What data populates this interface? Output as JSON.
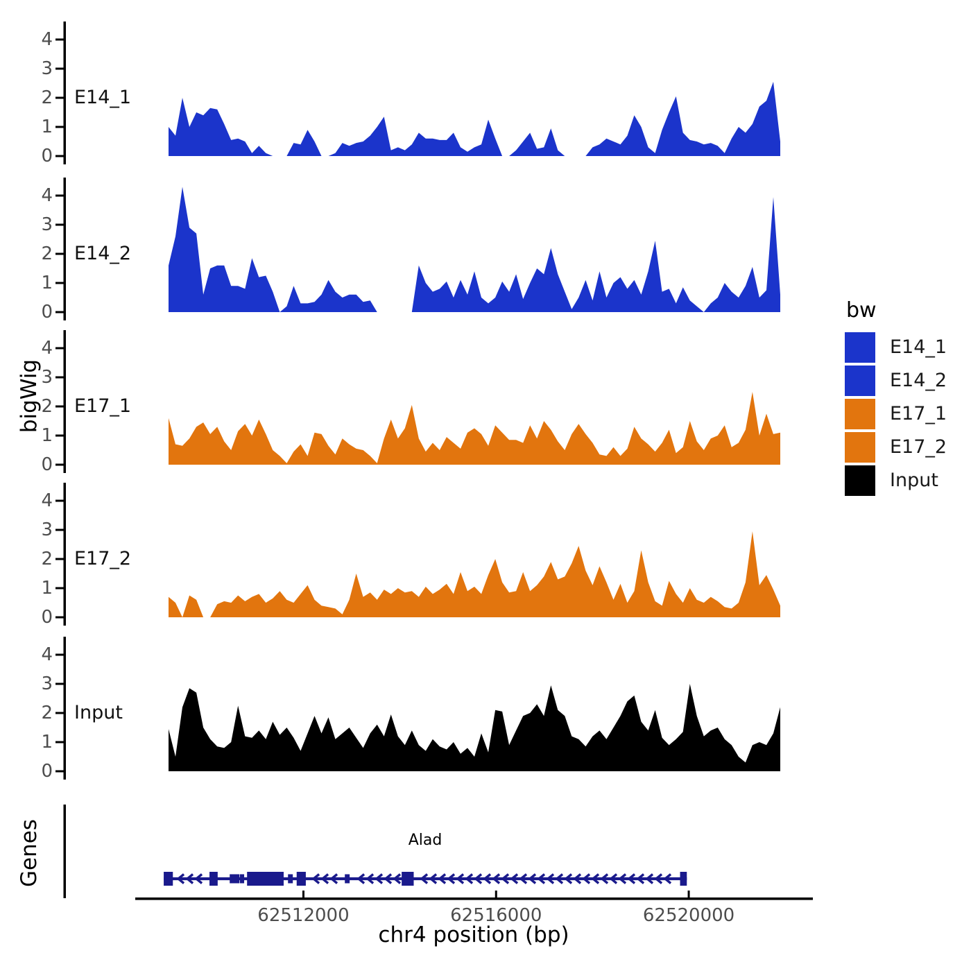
{
  "figure": {
    "background": "#ffffff",
    "y_axis_label": "bigWig",
    "genes_axis_label": "Genes",
    "x_axis": {
      "label": "chr4 position (bp)"
    }
  },
  "legend": {
    "title": "bw",
    "entries": [
      {
        "label": "E14_1",
        "color": "#1b34cb"
      },
      {
        "label": "E14_2",
        "color": "#1b34cb"
      },
      {
        "label": "E17_1",
        "color": "#e2750e"
      },
      {
        "label": "E17_2",
        "color": "#e2750e"
      },
      {
        "label": "Input",
        "color": "#000000"
      }
    ]
  },
  "chart_data": {
    "type": "area",
    "title": "",
    "xlabel": "chr4 position (bp)",
    "ylabel": "bigWig",
    "x_range_bp": [
      62509200,
      62521900
    ],
    "x_ticks": [
      {
        "bp": 62512000,
        "label": "62512000"
      },
      {
        "bp": 62516000,
        "label": "62516000"
      },
      {
        "bp": 62520000,
        "label": "62520000"
      }
    ],
    "yticks": [
      0,
      1,
      2,
      3,
      4
    ],
    "ylim": [
      0,
      4.6
    ],
    "grid": false,
    "legend_position": "right",
    "sample_step_bp": 144,
    "series": [
      {
        "name": "E14_1",
        "color": "#1b34cb",
        "values": [
          1.0,
          0.7,
          2.0,
          1.0,
          1.5,
          1.4,
          1.65,
          1.6,
          1.1,
          0.55,
          0.6,
          0.5,
          0.1,
          0.35,
          0.1,
          0,
          0,
          0,
          0.45,
          0.4,
          0.9,
          0.5,
          0,
          0,
          0.1,
          0.45,
          0.35,
          0.45,
          0.5,
          0.7,
          1.0,
          1.35,
          0.2,
          0.3,
          0.2,
          0.4,
          0.8,
          0.6,
          0.6,
          0.55,
          0.55,
          0.8,
          0.3,
          0.15,
          0.3,
          0.4,
          1.25,
          0.6,
          0,
          0,
          0.2,
          0.5,
          0.8,
          0.25,
          0.3,
          0.95,
          0.2,
          0,
          0,
          0,
          0,
          0.3,
          0.4,
          0.6,
          0.5,
          0.4,
          0.7,
          1.4,
          1.0,
          0.3,
          0.1,
          0.9,
          1.5,
          2.05,
          0.8,
          0.55,
          0.5,
          0.4,
          0.45,
          0.35,
          0.1,
          0.6,
          1.0,
          0.8,
          1.1,
          1.7,
          1.9,
          2.55,
          0.5
        ]
      },
      {
        "name": "E14_2",
        "color": "#1b34cb",
        "values": [
          1.6,
          2.6,
          4.3,
          2.9,
          2.7,
          0.6,
          1.5,
          1.6,
          1.6,
          0.9,
          0.9,
          0.8,
          1.85,
          1.2,
          1.25,
          0.7,
          0,
          0.2,
          0.9,
          0.3,
          0.3,
          0.35,
          0.6,
          1.1,
          0.7,
          0.5,
          0.6,
          0.6,
          0.35,
          0.4,
          0,
          0,
          0,
          0,
          0,
          0,
          1.6,
          1.0,
          0.7,
          0.8,
          1.05,
          0.5,
          1.1,
          0.6,
          1.4,
          0.5,
          0.3,
          0.5,
          1.05,
          0.7,
          1.3,
          0.45,
          1.0,
          1.5,
          1.3,
          2.2,
          1.3,
          0.7,
          0.1,
          0.5,
          1.1,
          0.4,
          1.4,
          0.5,
          1.0,
          1.2,
          0.8,
          1.1,
          0.6,
          1.4,
          2.45,
          0.7,
          0.8,
          0.3,
          0.85,
          0.4,
          0.2,
          0,
          0.3,
          0.5,
          1.0,
          0.7,
          0.5,
          0.9,
          1.55,
          0.5,
          0.75,
          3.95,
          0.6
        ]
      },
      {
        "name": "E17_1",
        "color": "#e2750e",
        "values": [
          1.6,
          0.7,
          0.65,
          0.9,
          1.3,
          1.45,
          1.05,
          1.3,
          0.8,
          0.5,
          1.15,
          1.4,
          1.0,
          1.55,
          1.05,
          0.5,
          0.3,
          0.05,
          0.45,
          0.7,
          0.3,
          1.1,
          1.05,
          0.65,
          0.35,
          0.9,
          0.7,
          0.55,
          0.5,
          0.3,
          0.05,
          0.9,
          1.55,
          0.9,
          1.25,
          2.05,
          0.9,
          0.45,
          0.75,
          0.5,
          0.95,
          0.75,
          0.55,
          1.1,
          1.25,
          1.05,
          0.65,
          1.35,
          1.1,
          0.85,
          0.85,
          0.75,
          1.35,
          0.9,
          1.5,
          1.2,
          0.8,
          0.5,
          1.05,
          1.4,
          1.05,
          0.75,
          0.35,
          0.3,
          0.6,
          0.3,
          0.55,
          1.3,
          0.9,
          0.7,
          0.45,
          0.75,
          1.2,
          0.4,
          0.6,
          1.5,
          0.8,
          0.5,
          0.9,
          1.0,
          1.35,
          0.6,
          0.75,
          1.2,
          2.5,
          1.0,
          1.75,
          1.05,
          1.1
        ]
      },
      {
        "name": "E17_2",
        "color": "#e2750e",
        "values": [
          0.7,
          0.5,
          0,
          0.75,
          0.6,
          0,
          0,
          0.45,
          0.55,
          0.5,
          0.75,
          0.55,
          0.7,
          0.8,
          0.5,
          0.65,
          0.9,
          0.6,
          0.5,
          0.8,
          1.1,
          0.6,
          0.4,
          0.35,
          0.3,
          0.1,
          0.6,
          1.5,
          0.7,
          0.85,
          0.6,
          0.95,
          0.8,
          1.0,
          0.85,
          0.9,
          0.7,
          1.05,
          0.8,
          0.95,
          1.15,
          0.8,
          1.55,
          0.9,
          1.05,
          0.8,
          1.45,
          2.0,
          1.2,
          0.85,
          0.9,
          1.55,
          0.9,
          1.1,
          1.4,
          1.9,
          1.3,
          1.4,
          1.85,
          2.45,
          1.6,
          1.1,
          1.75,
          1.2,
          0.6,
          1.15,
          0.5,
          0.9,
          2.3,
          1.2,
          0.55,
          0.4,
          1.25,
          0.8,
          0.5,
          1.0,
          0.6,
          0.5,
          0.7,
          0.55,
          0.35,
          0.3,
          0.5,
          1.2,
          2.95,
          1.1,
          1.45,
          0.95,
          0.4
        ]
      },
      {
        "name": "Input",
        "color": "#000000",
        "values": [
          1.45,
          0.5,
          2.2,
          2.85,
          2.7,
          1.5,
          1.1,
          0.85,
          0.8,
          1.0,
          2.25,
          1.2,
          1.15,
          1.4,
          1.1,
          1.7,
          1.25,
          1.5,
          1.15,
          0.7,
          1.3,
          1.9,
          1.3,
          1.85,
          1.1,
          1.3,
          1.5,
          1.15,
          0.8,
          1.3,
          1.6,
          1.2,
          1.95,
          1.2,
          0.9,
          1.4,
          0.9,
          0.7,
          1.1,
          0.85,
          0.75,
          1.0,
          0.6,
          0.8,
          0.5,
          1.3,
          0.65,
          2.1,
          2.05,
          0.9,
          1.4,
          1.9,
          2.0,
          2.3,
          1.9,
          2.95,
          2.1,
          1.9,
          1.2,
          1.1,
          0.85,
          1.2,
          1.4,
          1.1,
          1.5,
          1.9,
          2.4,
          2.6,
          1.7,
          1.4,
          2.1,
          1.15,
          0.9,
          1.1,
          1.35,
          3.0,
          1.9,
          1.2,
          1.4,
          1.5,
          1.1,
          0.9,
          0.5,
          0.3,
          0.9,
          1.0,
          0.9,
          1.3,
          2.2
        ]
      }
    ],
    "gene_track": {
      "gene": "Alad",
      "strand": "-",
      "start_bp": 62509100,
      "end_bp": 62519960,
      "color": "#1a1a8c",
      "exons_bp": [
        [
          62509100,
          62509290
        ],
        [
          62510050,
          62510220
        ],
        [
          62510470,
          62510670
        ],
        [
          62510680,
          62510770
        ],
        [
          62510830,
          62511590
        ],
        [
          62511680,
          62511780
        ],
        [
          62511860,
          62512050
        ],
        [
          62512860,
          62512960
        ],
        [
          62514040,
          62514290
        ],
        [
          62519820,
          62519960
        ]
      ],
      "exon_heights": [
        "tall",
        "tall",
        "thin",
        "thin",
        "tall",
        "thin",
        "tall",
        "thin",
        "tall",
        "tall"
      ]
    }
  }
}
